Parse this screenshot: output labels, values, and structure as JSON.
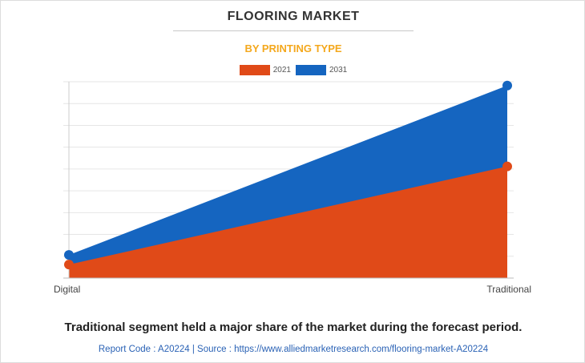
{
  "header": {
    "title": "FLOORING MARKET",
    "subtitle": "BY PRINTING TYPE"
  },
  "legend": [
    {
      "label": "2021",
      "color": "#e04a18"
    },
    {
      "label": "2031",
      "color": "#1565c0"
    }
  ],
  "chart_data": {
    "type": "area",
    "categories": [
      "Digital",
      "Traditional"
    ],
    "series": [
      {
        "name": "2021",
        "values": [
          0.7,
          5.8
        ],
        "color": "#e04a18"
      },
      {
        "name": "2031",
        "values": [
          1.2,
          10.0
        ],
        "color": "#1565c0"
      }
    ],
    "ylim": [
      0,
      10.2
    ],
    "y_tick_labels_shown": false,
    "grid": true,
    "legend_position": "top-center"
  },
  "caption": "Traditional segment held a major share of the market during the forecast period.",
  "footer": "Report Code : A20224  |  Source : https://www.alliedmarketresearch.com/flooring-market-A20224"
}
